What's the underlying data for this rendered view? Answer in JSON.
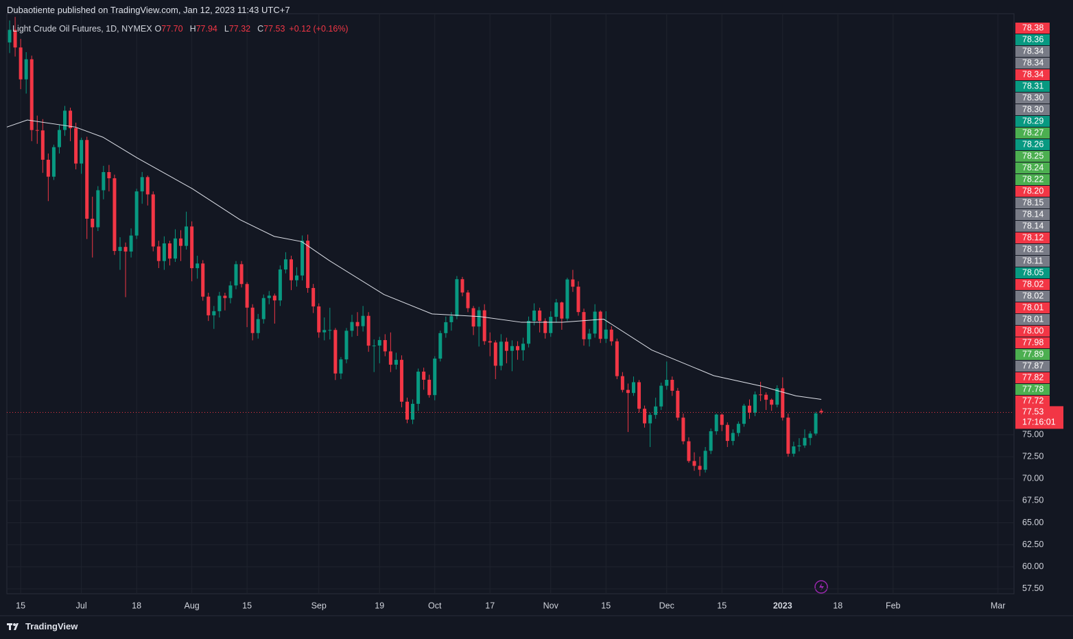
{
  "header": "Dubaotiente published on TradingView.com, Jan 12, 2023 11:43 UTC+7",
  "brand": "TradingView",
  "chart_data": {
    "type": "candlestick",
    "title": "Light Crude Oil Futures, 1D, NYMEX",
    "legend": {
      "fields": [
        {
          "key": "O",
          "value": "77.70"
        },
        {
          "key": "H",
          "value": "77.94"
        },
        {
          "key": "L",
          "value": "77.32"
        },
        {
          "key": "C",
          "value": "77.53"
        }
      ],
      "change": "+0.12 (+0.16%)"
    },
    "up_color": "#089981",
    "down_color": "#f23645",
    "xlim": [
      -0.5,
      181.9
    ],
    "xticks": [
      {
        "value": 2,
        "label": "15"
      },
      {
        "value": 13,
        "label": "Jul"
      },
      {
        "value": 23,
        "label": "18"
      },
      {
        "value": 33,
        "label": "Aug"
      },
      {
        "value": 43,
        "label": "15"
      },
      {
        "value": 56,
        "label": "Sep"
      },
      {
        "value": 67,
        "label": "19"
      },
      {
        "value": 77,
        "label": "Oct"
      },
      {
        "value": 87,
        "label": "17"
      },
      {
        "value": 98,
        "label": "Nov"
      },
      {
        "value": 108,
        "label": "15"
      },
      {
        "value": 119,
        "label": "Dec"
      },
      {
        "value": 129,
        "label": "15"
      },
      {
        "value": 140,
        "label": "2023",
        "bold": true
      },
      {
        "value": 150,
        "label": "18"
      },
      {
        "value": 160,
        "label": "Feb"
      },
      {
        "value": 179,
        "label": "Mar"
      }
    ],
    "ylim": [
      56.95,
      122.76
    ],
    "yticks": [
      {
        "value": 57.5,
        "label": "57.50"
      },
      {
        "value": 60,
        "label": "60.00"
      },
      {
        "value": 62.5,
        "label": "62.50"
      },
      {
        "value": 65,
        "label": "65.00"
      },
      {
        "value": 67.5,
        "label": "67.50"
      },
      {
        "value": 70,
        "label": "70.00"
      },
      {
        "value": 72.5,
        "label": "72.50"
      },
      {
        "value": 75,
        "label": "75.00"
      }
    ],
    "grid": true,
    "open": [
      119.5,
      120.93,
      118.93,
      115.31,
      117.59,
      109.56,
      109.52,
      106.19,
      104.27,
      107.62,
      109.57,
      111.76,
      109.78,
      105.76,
      108.43,
      99.5,
      98.53,
      102.73,
      104.79,
      104.09,
      95.84,
      96.3,
      95.78,
      97.59,
      102.6,
      104.22,
      102.26,
      96.35,
      94.7,
      96.7,
      94.98,
      97.26,
      96.42,
      98.62,
      93.89,
      94.42,
      90.66,
      88.54,
      89.01,
      90.76,
      90.5,
      91.93,
      94.34,
      92.09,
      89.41,
      86.53,
      88.11,
      90.5,
      90.77,
      90.23,
      93.74,
      94.89,
      92.52,
      93.06,
      97.01,
      91.64,
      89.55,
      86.61,
      86.87,
      86.88,
      81.94,
      83.54,
      86.79,
      87.78,
      87.31,
      88.48,
      85.1,
      85.11,
      85.73,
      84.45,
      82.94,
      83.49,
      78.74,
      76.71,
      78.5,
      82.15,
      81.23,
      79.49,
      83.63,
      86.52,
      87.76,
      88.45,
      92.64,
      91.13,
      89.35,
      87.27,
      89.11,
      85.61,
      85.46,
      82.82,
      85.55,
      84.51,
      85.05,
      84.58,
      85.32,
      87.91,
      89.08,
      87.9,
      86.53,
      88.37,
      90.0,
      88.17,
      92.61,
      91.79,
      88.91,
      85.83,
      86.47,
      88.96,
      85.87,
      86.92,
      85.59,
      81.64,
      80.08,
      79.73,
      80.95,
      77.94,
      76.28,
      77.24,
      78.2,
      80.55,
      81.22,
      79.98,
      76.93,
      74.25,
      72.01,
      71.46,
      71.02,
      73.17,
      75.39,
      77.28,
      76.11,
      74.29,
      75.19,
      76.23,
      78.29,
      77.49,
      79.56,
      79.53,
      78.96,
      78.4,
      80.26,
      76.93,
      72.84,
      73.67,
      73.77,
      74.63,
      75.12,
      77.7
    ],
    "high": [
      122.0,
      122.4,
      119.9,
      118.4,
      118.0,
      111.2,
      110.8,
      106.9,
      107.9,
      110.2,
      112.3,
      112.1,
      110.4,
      108.7,
      108.8,
      102.0,
      103.2,
      105.5,
      105.6,
      104.5,
      97.4,
      96.8,
      98.4,
      102.9,
      104.8,
      104.4,
      102.6,
      97.0,
      97.5,
      97.0,
      98.3,
      98.2,
      100.3,
      99.2,
      95.3,
      94.8,
      91.1,
      89.6,
      91.2,
      91.1,
      92.4,
      94.7,
      94.7,
      92.3,
      89.8,
      88.7,
      90.9,
      91.3,
      91.0,
      94.2,
      95.7,
      95.3,
      94.0,
      97.6,
      97.7,
      92.1,
      89.9,
      88.3,
      89.4,
      87.1,
      83.8,
      87.1,
      88.6,
      88.9,
      89.6,
      88.9,
      85.8,
      86.1,
      86.4,
      86.6,
      84.3,
      84.0,
      79.2,
      79.0,
      82.5,
      82.6,
      81.8,
      83.9,
      86.8,
      88.4,
      88.9,
      93.0,
      92.9,
      91.4,
      89.6,
      89.5,
      89.8,
      86.6,
      85.7,
      86.4,
      86.0,
      85.7,
      85.6,
      86.0,
      88.4,
      89.9,
      89.4,
      88.2,
      89.0,
      90.4,
      90.1,
      92.8,
      93.7,
      92.4,
      89.3,
      87.0,
      89.8,
      89.1,
      89.0,
      87.3,
      85.9,
      82.1,
      80.8,
      81.6,
      81.2,
      78.3,
      77.5,
      79.2,
      80.9,
      83.3,
      81.6,
      80.3,
      77.4,
      74.7,
      73.0,
      72.5,
      73.6,
      75.7,
      77.4,
      77.4,
      76.4,
      75.6,
      76.5,
      78.5,
      79.0,
      79.9,
      81.0,
      79.8,
      79.1,
      80.6,
      81.5,
      77.4,
      74.2,
      74.6,
      75.6,
      75.4,
      77.6,
      77.94
    ],
    "low": [
      118.3,
      117.9,
      114.2,
      113.7,
      108.3,
      108.0,
      104.7,
      101.5,
      103.9,
      106.9,
      108.9,
      108.3,
      105.1,
      104.6,
      97.2,
      95.1,
      98.1,
      101.7,
      102.6,
      95.4,
      93.7,
      90.6,
      95.1,
      97.2,
      101.2,
      101.0,
      95.8,
      93.9,
      93.7,
      94.2,
      94.6,
      94.7,
      96.0,
      92.4,
      92.7,
      90.2,
      87.9,
      87.0,
      88.3,
      89.1,
      89.9,
      91.5,
      91.7,
      87.2,
      85.7,
      85.9,
      87.6,
      89.8,
      87.6,
      89.6,
      93.3,
      91.4,
      91.8,
      92.5,
      91.1,
      88.8,
      86.0,
      85.7,
      85.8,
      81.2,
      81.3,
      83.1,
      86.1,
      86.2,
      86.7,
      84.4,
      82.1,
      83.1,
      83.9,
      82.1,
      82.4,
      78.1,
      76.3,
      76.2,
      77.7,
      80.1,
      79.2,
      78.9,
      83.3,
      86.0,
      86.8,
      88.1,
      90.7,
      88.9,
      86.3,
      85.0,
      85.2,
      83.9,
      81.3,
      82.3,
      83.1,
      82.2,
      83.5,
      83.4,
      84.9,
      87.4,
      86.6,
      85.9,
      86.1,
      87.7,
      86.9,
      87.9,
      91.2,
      88.5,
      85.1,
      85.0,
      86.0,
      85.4,
      85.4,
      85.1,
      81.3,
      79.8,
      75.3,
      79.4,
      77.5,
      75.8,
      73.6,
      76.8,
      77.8,
      80.1,
      79.4,
      76.6,
      73.9,
      71.8,
      70.9,
      70.3,
      70.7,
      72.8,
      75.0,
      75.4,
      73.6,
      73.8,
      74.8,
      75.9,
      76.8,
      77.1,
      78.8,
      77.8,
      77.7,
      78.1,
      76.6,
      72.5,
      72.5,
      73.1,
      73.5,
      73.8,
      74.9,
      77.32
    ],
    "close": [
      120.93,
      118.93,
      115.31,
      117.59,
      109.56,
      109.52,
      106.19,
      104.27,
      107.62,
      109.57,
      111.76,
      109.78,
      105.76,
      108.43,
      99.5,
      98.53,
      102.73,
      104.79,
      104.09,
      95.84,
      96.3,
      95.78,
      97.59,
      102.6,
      104.22,
      102.26,
      96.35,
      94.7,
      96.7,
      94.98,
      97.26,
      96.42,
      98.62,
      93.89,
      94.42,
      90.66,
      88.54,
      89.01,
      90.76,
      90.5,
      91.93,
      94.34,
      92.09,
      89.41,
      86.53,
      88.11,
      90.5,
      90.77,
      90.23,
      93.74,
      94.89,
      92.52,
      93.06,
      97.01,
      91.64,
      89.55,
      86.61,
      86.87,
      86.88,
      81.94,
      83.54,
      86.79,
      87.78,
      87.31,
      88.48,
      85.1,
      85.11,
      85.73,
      84.45,
      82.94,
      83.49,
      78.74,
      76.71,
      78.5,
      82.15,
      81.23,
      79.49,
      83.63,
      86.52,
      87.76,
      88.45,
      92.64,
      91.13,
      89.35,
      87.27,
      89.11,
      85.61,
      85.46,
      82.82,
      85.55,
      84.51,
      85.05,
      84.58,
      85.32,
      87.91,
      89.08,
      87.9,
      86.53,
      88.37,
      90.0,
      88.17,
      92.61,
      91.79,
      88.91,
      85.83,
      86.47,
      88.96,
      85.87,
      86.92,
      85.59,
      81.64,
      80.08,
      79.73,
      80.95,
      77.94,
      76.28,
      77.24,
      78.2,
      80.55,
      81.22,
      79.98,
      76.93,
      74.25,
      72.01,
      71.46,
      71.02,
      73.17,
      75.39,
      77.28,
      76.11,
      74.29,
      75.19,
      76.23,
      78.29,
      77.49,
      79.56,
      79.53,
      78.96,
      78.4,
      80.26,
      76.93,
      72.84,
      73.67,
      73.77,
      74.63,
      75.12,
      77.41,
      77.53
    ],
    "ma": {
      "color": "#e0e3eb",
      "x": [
        -0.5,
        3.2,
        11.9,
        16.9,
        23.1,
        33.1,
        41.7,
        47.9,
        52.9,
        57.9,
        67.8,
        76.5,
        85.2,
        92.7,
        100.1,
        107.6,
        116.3,
        127.5,
        136.2,
        142.4,
        147
      ],
      "values": [
        109.9,
        110.7,
        109.9,
        108.75,
        106.4,
        102.9,
        99.4,
        97.5,
        96.9,
        94.75,
        90.9,
        88.7,
        88.4,
        87.75,
        87.75,
        88.1,
        84.6,
        81.7,
        80.5,
        79.4,
        79.0
      ]
    },
    "price_labels": [
      {
        "label": "78.38",
        "color": "#f23645"
      },
      {
        "label": "78.36",
        "color": "#089981"
      },
      {
        "label": "78.34",
        "color": "#787b86"
      },
      {
        "label": "78.34",
        "color": "#787b86"
      },
      {
        "label": "78.34",
        "color": "#f23645"
      },
      {
        "label": "78.31",
        "color": "#089981"
      },
      {
        "label": "78.30",
        "color": "#787b86"
      },
      {
        "label": "78.30",
        "color": "#787b86"
      },
      {
        "label": "78.29",
        "color": "#089981"
      },
      {
        "label": "78.27",
        "color": "#4caf50"
      },
      {
        "label": "78.26",
        "color": "#089981"
      },
      {
        "label": "78.25",
        "color": "#4caf50"
      },
      {
        "label": "78.24",
        "color": "#4caf50"
      },
      {
        "label": "78.22",
        "color": "#4caf50"
      },
      {
        "label": "78.20",
        "color": "#f23645"
      },
      {
        "label": "78.15",
        "color": "#787b86"
      },
      {
        "label": "78.14",
        "color": "#787b86"
      },
      {
        "label": "78.14",
        "color": "#787b86"
      },
      {
        "label": "78.12",
        "color": "#f23645"
      },
      {
        "label": "78.12",
        "color": "#787b86"
      },
      {
        "label": "78.11",
        "color": "#787b86"
      },
      {
        "label": "78.05",
        "color": "#089981"
      },
      {
        "label": "78.02",
        "color": "#f23645"
      },
      {
        "label": "78.02",
        "color": "#787b86"
      },
      {
        "label": "78.01",
        "color": "#f23645"
      },
      {
        "label": "78.01",
        "color": "#787b86"
      },
      {
        "label": "78.00",
        "color": "#f23645"
      },
      {
        "label": "77.98",
        "color": "#f23645"
      },
      {
        "label": "77.89",
        "color": "#4caf50"
      },
      {
        "label": "77.87",
        "color": "#787b86"
      },
      {
        "label": "77.82",
        "color": "#f23645"
      },
      {
        "label": "77.78",
        "color": "#4caf50"
      },
      {
        "label": "77.72",
        "color": "#f23645"
      }
    ],
    "last": {
      "value": 77.53,
      "label": "77.53",
      "countdown": "17:16:01",
      "color": "#f23645"
    }
  }
}
